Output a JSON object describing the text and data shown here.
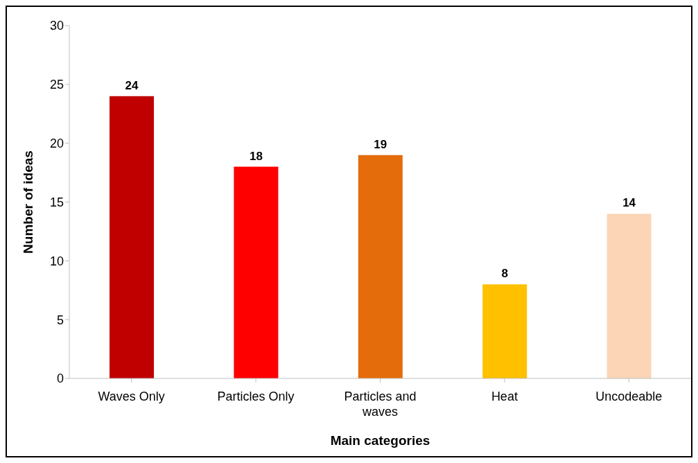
{
  "chart_data": {
    "type": "bar",
    "categories": [
      "Waves Only",
      "Particles Only",
      "Particles and waves",
      "Heat",
      "Uncodeable"
    ],
    "values": [
      24,
      18,
      19,
      8,
      14
    ],
    "colors": [
      "#c00000",
      "#ff0000",
      "#e46c0a",
      "#ffc000",
      "#fbd5b5"
    ],
    "xlabel": "Main categories",
    "ylabel": "Number of ideas",
    "ylim": [
      0,
      30
    ],
    "yticks": [
      0,
      5,
      10,
      15,
      20,
      25,
      30
    ],
    "grid": false,
    "data_labels": true
  }
}
